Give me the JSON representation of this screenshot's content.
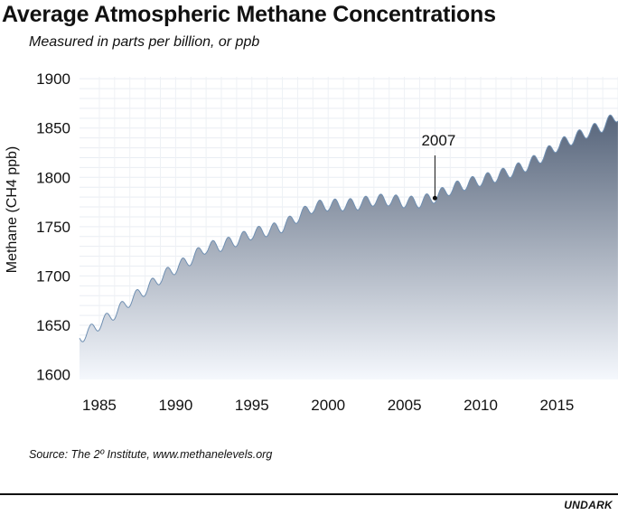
{
  "chart_data": {
    "type": "area",
    "title": "Average Atmospheric Methane Concentrations",
    "subtitle": "Measured in parts per billion, or ppb",
    "xlabel": "",
    "ylabel": "Methane (CH4 ppb)",
    "xlim": [
      1983.7,
      2019
    ],
    "ylim": [
      1595,
      1902
    ],
    "x_ticks": [
      1985,
      1990,
      1995,
      2000,
      2005,
      2010,
      2015
    ],
    "y_ticks": [
      1600,
      1650,
      1700,
      1750,
      1800,
      1850,
      1900
    ],
    "grid": true,
    "seasonal_amplitude_ppb": 6,
    "series": [
      {
        "name": "",
        "x": [
          1983.7,
          1984,
          1985,
          1986,
          1987,
          1988,
          1989,
          1990,
          1991,
          1992,
          1993,
          1994,
          1995,
          1996,
          1997,
          1998,
          1999,
          2000,
          2001,
          2002,
          2003,
          2004,
          2005,
          2006,
          2007,
          2008,
          2009,
          2010,
          2011,
          2012,
          2013,
          2014,
          2015,
          2016,
          2017,
          2018,
          2019
        ],
        "values": [
          1637,
          1640,
          1651,
          1662,
          1675,
          1686,
          1698,
          1708,
          1717,
          1729,
          1731,
          1736,
          1743,
          1746,
          1750,
          1760,
          1770,
          1772,
          1772,
          1773,
          1777,
          1777,
          1775,
          1775,
          1780,
          1788,
          1793,
          1797,
          1801,
          1806,
          1812,
          1821,
          1832,
          1839,
          1846,
          1852,
          1863
        ]
      }
    ],
    "annotations": [
      {
        "label": "2007",
        "x": 2007,
        "y": 1779
      }
    ],
    "colors": {
      "area_top": "#56647a",
      "area_bottom": "#f5f8fd",
      "line": "#6f8fb2"
    }
  },
  "footer": {
    "source": "Source: The 2º Institute, www.methanelevels.org",
    "brand": "UNDARK"
  }
}
